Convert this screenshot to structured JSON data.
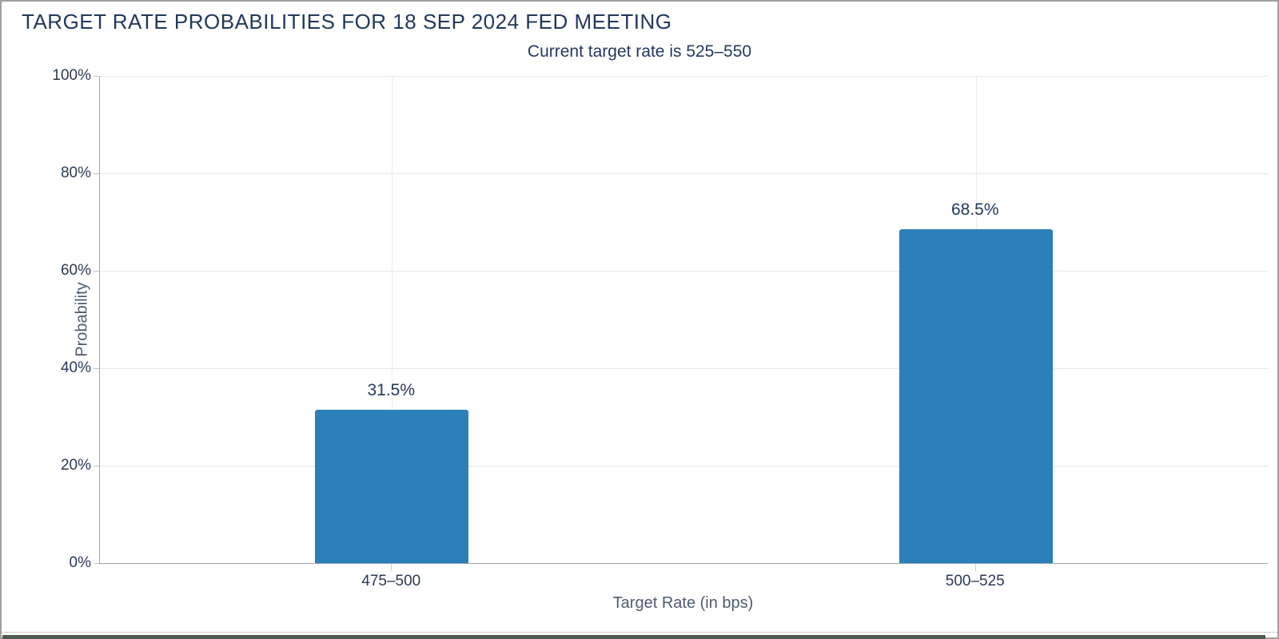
{
  "window": {
    "background": "#ffffff",
    "border_color": "#a0a0a0"
  },
  "chart_data": {
    "type": "bar",
    "title": "TARGET RATE PROBABILITIES FOR 18 SEP 2024 FED MEETING",
    "subtitle": "Current target rate is 525–550",
    "categories": [
      "475–500",
      "500–525"
    ],
    "values": [
      31.5,
      68.5
    ],
    "value_labels": [
      "31.5%",
      "68.5%"
    ],
    "xlabel": "Target Rate (in bps)",
    "ylabel": "Probability",
    "ylim": [
      0,
      100
    ],
    "ytick_step": 20,
    "ytick_labels": [
      "0%",
      "20%",
      "40%",
      "60%",
      "80%",
      "100%"
    ],
    "grid": true,
    "legend": "none",
    "colors": {
      "bar": "#2c80b9",
      "title_text": "#22395e",
      "tick_text": "#2b3a55",
      "axis_title_text": "#4d5b72",
      "axis_line": "#9fa4a9",
      "gridline": "#e7e7e7"
    }
  }
}
